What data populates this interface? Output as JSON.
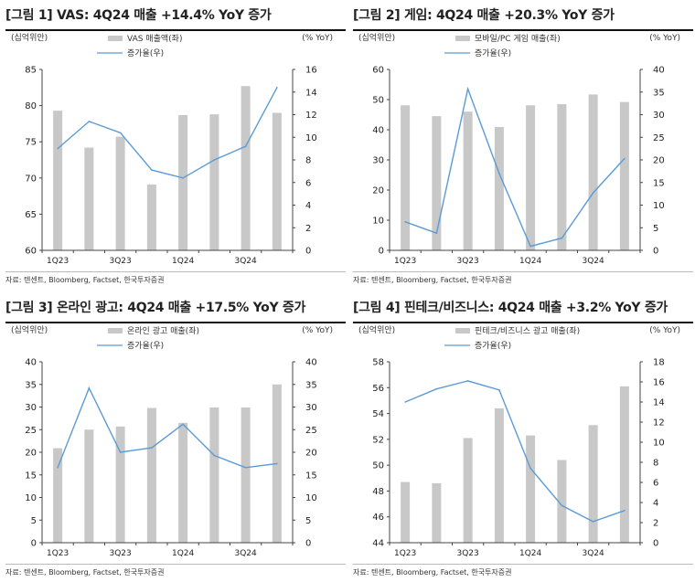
{
  "colors": {
    "bar": "#c8c8c8",
    "line": "#5b9bd5",
    "axis": "#444444"
  },
  "panels": [
    {
      "title": "[그림 1] VAS: 4Q24 매출 +14.4% YoY 증가",
      "unit_left": "(십억위안)",
      "unit_right": "(% YoY)",
      "legend_bar": "VAS 매출액(좌)",
      "legend_line": "증가율(우)",
      "source": "자료: 텐센트, Bloomberg, Factset, 한국투자증권",
      "chart_data": {
        "type": "bar",
        "categories": [
          "1Q23",
          "2Q23",
          "3Q23",
          "4Q23",
          "1Q24",
          "2Q24",
          "3Q24",
          "4Q24"
        ],
        "x_tick_labels": [
          "1Q23",
          "3Q23",
          "1Q24",
          "3Q24"
        ],
        "series": [
          {
            "name": "VAS 매출액(좌)",
            "type": "bar",
            "axis": "left",
            "values": [
              79.3,
              74.2,
              75.7,
              69.1,
              78.7,
              78.8,
              82.7,
              79.0
            ]
          },
          {
            "name": "증가율(우)",
            "type": "line",
            "axis": "right",
            "values": [
              9.0,
              11.4,
              10.4,
              7.1,
              6.4,
              8.0,
              9.2,
              14.4
            ]
          }
        ],
        "ylim_left": [
          60,
          85
        ],
        "yticks_left": [
          60,
          65,
          70,
          75,
          80,
          85
        ],
        "ylim_right": [
          0,
          16
        ],
        "yticks_right": [
          0,
          2,
          4,
          6,
          8,
          10,
          12,
          14,
          16
        ],
        "grid": false,
        "legend": "top-center"
      }
    },
    {
      "title": "[그림 2] 게임: 4Q24 매출 +20.3% YoY 증가",
      "unit_left": "(십억위안)",
      "unit_right": "(% YoY)",
      "legend_bar": "모바일/PC 게임 매출(좌)",
      "legend_line": "증가율(우)",
      "source": "자료: 텐센트, Bloomberg, Factset, 한국투자증권",
      "chart_data": {
        "type": "bar",
        "categories": [
          "1Q23",
          "2Q23",
          "3Q23",
          "4Q23",
          "1Q24",
          "2Q24",
          "3Q24",
          "4Q24"
        ],
        "x_tick_labels": [
          "1Q23",
          "3Q23",
          "1Q24",
          "3Q24"
        ],
        "series": [
          {
            "name": "모바일/PC 게임 매출(좌)",
            "type": "bar",
            "axis": "left",
            "values": [
              48.1,
              44.5,
              46.0,
              40.9,
              48.1,
              48.5,
              51.7,
              49.2
            ]
          },
          {
            "name": "증가율(우)",
            "type": "line",
            "axis": "right",
            "values": [
              6.3,
              3.8,
              35.7,
              17.0,
              0.9,
              2.7,
              12.7,
              20.3
            ]
          }
        ],
        "ylim_left": [
          0,
          60
        ],
        "yticks_left": [
          0,
          10,
          20,
          30,
          40,
          50,
          60
        ],
        "ylim_right": [
          0,
          40
        ],
        "yticks_right": [
          0,
          5,
          10,
          15,
          20,
          25,
          30,
          35,
          40
        ],
        "grid": false,
        "legend": "top-center"
      }
    },
    {
      "title": "[그림 3] 온라인 광고: 4Q24 매출 +17.5% YoY 증가",
      "unit_left": "(십억위안)",
      "unit_right": "(% YoY)",
      "legend_bar": "온라인 광고 매출(좌)",
      "legend_line": "증가율(우)",
      "source": "자료: 텐센트, Bloomberg, Factset, 한국투자증권",
      "chart_data": {
        "type": "bar",
        "categories": [
          "1Q23",
          "2Q23",
          "3Q23",
          "4Q23",
          "1Q24",
          "2Q24",
          "3Q24",
          "4Q24"
        ],
        "x_tick_labels": [
          "1Q23",
          "3Q23",
          "1Q24",
          "3Q24"
        ],
        "series": [
          {
            "name": "온라인 광고 매출(좌)",
            "type": "bar",
            "axis": "left",
            "values": [
              20.9,
              25.0,
              25.7,
              29.8,
              26.5,
              29.9,
              29.9,
              35.0
            ]
          },
          {
            "name": "증가율(우)",
            "type": "line",
            "axis": "right",
            "values": [
              16.6,
              34.2,
              20.0,
              21.0,
              26.2,
              19.3,
              16.6,
              17.5
            ]
          }
        ],
        "ylim_left": [
          0,
          40
        ],
        "yticks_left": [
          0,
          5,
          10,
          15,
          20,
          25,
          30,
          35,
          40
        ],
        "ylim_right": [
          0,
          40
        ],
        "yticks_right": [
          0,
          5,
          10,
          15,
          20,
          25,
          30,
          35,
          40
        ],
        "grid": false,
        "legend": "top-center"
      }
    },
    {
      "title": "[그림 4] 핀테크/비즈니스: 4Q24 매출 +3.2% YoY 증가",
      "unit_left": "(십억위안)",
      "unit_right": "(% YoY)",
      "legend_bar": "핀테크/비즈니스 광고 매출(좌)",
      "legend_line": "증가율(우)",
      "source": "자료: 텐센트, Bloomberg, Factset, 한국투자증권",
      "chart_data": {
        "type": "bar",
        "categories": [
          "1Q23",
          "2Q23",
          "3Q23",
          "4Q23",
          "1Q24",
          "2Q24",
          "3Q24",
          "4Q24"
        ],
        "x_tick_labels": [
          "1Q23",
          "3Q23",
          "1Q24",
          "3Q24"
        ],
        "series": [
          {
            "name": "핀테크/비즈니스 광고 매출(좌)",
            "type": "bar",
            "axis": "left",
            "values": [
              48.7,
              48.6,
              52.1,
              54.4,
              52.3,
              50.4,
              53.1,
              56.1
            ]
          },
          {
            "name": "증가율(우)",
            "type": "line",
            "axis": "right",
            "values": [
              14.0,
              15.3,
              16.1,
              15.2,
              7.4,
              3.7,
              2.1,
              3.2
            ]
          }
        ],
        "ylim_left": [
          44,
          58
        ],
        "yticks_left": [
          44,
          46,
          48,
          50,
          52,
          54,
          56,
          58
        ],
        "ylim_right": [
          0,
          18
        ],
        "yticks_right": [
          0,
          2,
          4,
          6,
          8,
          10,
          12,
          14,
          16,
          18
        ],
        "grid": false,
        "legend": "top-center"
      }
    }
  ]
}
